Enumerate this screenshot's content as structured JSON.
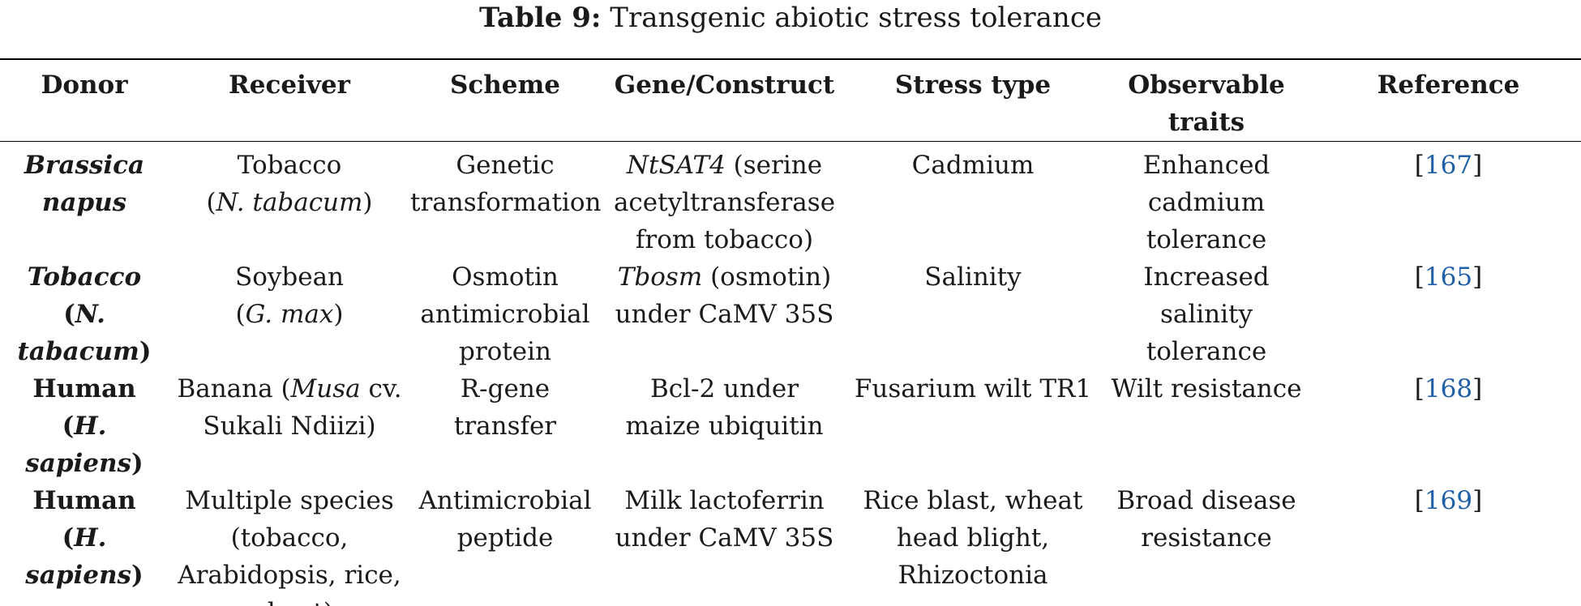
{
  "caption": {
    "label": "Table 9:",
    "text": "Transgenic abiotic stress tolerance"
  },
  "headers": {
    "donor": "Donor",
    "receiver": "Receiver",
    "scheme": "Scheme",
    "gene": "Gene/Construct",
    "stress": "Stress type",
    "traits_1": "Observable",
    "traits_2": "traits",
    "reference": "Reference"
  },
  "rows": [
    {
      "donor": {
        "name": "Brassica napus",
        "common": ""
      },
      "receiver": {
        "line1": "Tobacco",
        "line2_open": "(",
        "line2_italic": "N. tabacum",
        "line2_close": ")"
      },
      "scheme": [
        "Genetic",
        "transformation"
      ],
      "gene": {
        "italic": "NtSAT4",
        "line1_rest": " (serine",
        "line2": "acetyltransferase",
        "line3": "from tobacco)"
      },
      "stress": [
        "Cadmium"
      ],
      "traits": [
        "Enhanced",
        "cadmium",
        "tolerance"
      ],
      "ref_open": "[",
      "ref_num": "167",
      "ref_close": "]"
    },
    {
      "donor": {
        "line1": "Tobacco",
        "line2_open": "(",
        "line2_italic": "N. tabacum",
        "line2_close": ")"
      },
      "receiver": {
        "line1": "Soybean",
        "line2_open": "(",
        "line2_italic": "G. max",
        "line2_close": ")"
      },
      "scheme": [
        "Osmotin",
        "antimicrobial",
        "protein"
      ],
      "gene": {
        "italic": "Tbosm",
        "line1_rest": " (osmotin)",
        "line2": "under CaMV 35S"
      },
      "stress": [
        "Salinity"
      ],
      "traits": [
        "Increased",
        "salinity",
        "tolerance"
      ],
      "ref_open": "[",
      "ref_num": "165",
      "ref_close": "]"
    },
    {
      "donor": {
        "line1": "Human",
        "line2_open": "(",
        "line2_italic": "H. sapiens",
        "line2_close": ")"
      },
      "receiver": {
        "line1_pre": "Banana (",
        "line1_italic": "Musa",
        "line1_post": " cv.",
        "line2": "Sukali Ndiizi)"
      },
      "scheme": [
        "R-gene transfer"
      ],
      "gene": [
        "Bcl-2 under",
        "maize ubiquitin"
      ],
      "stress": [
        "Fusarium wilt TR1"
      ],
      "traits": [
        "Wilt resistance"
      ],
      "ref_open": "[",
      "ref_num": "168",
      "ref_close": "]"
    },
    {
      "donor": {
        "line1": "Human",
        "line2_open": "(",
        "line2_italic": "H. sapiens",
        "line2_close": ")"
      },
      "receiver": [
        "Multiple species",
        "(tobacco,",
        "Arabidopsis, rice,",
        "wheat)"
      ],
      "scheme": [
        "Antimicrobial",
        "peptide"
      ],
      "gene": [
        "Milk lactoferrin",
        "under CaMV 35S"
      ],
      "stress": [
        "Rice blast, wheat",
        "head blight,",
        "Rhizoctonia"
      ],
      "traits": [
        "Broad disease",
        "resistance"
      ],
      "ref_open": "[",
      "ref_num": "169",
      "ref_close": "]"
    }
  ]
}
